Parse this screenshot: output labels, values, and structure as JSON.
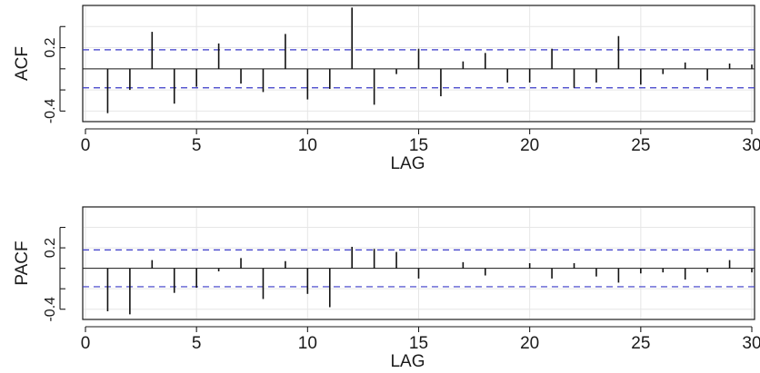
{
  "chart_data": [
    {
      "type": "bar",
      "ylabel": "ACF",
      "xlabel": "LAG",
      "xlim": [
        0,
        30
      ],
      "ylim": [
        -0.5,
        0.6
      ],
      "xticks": [
        0,
        5,
        10,
        15,
        20,
        25,
        30
      ],
      "yticks": [
        -0.4,
        -0.2,
        0,
        0.2,
        0.4
      ],
      "ytick_labels": [
        "-0.4",
        "",
        "",
        "0.2",
        ""
      ],
      "confidence_bound": 0.18,
      "grid": true,
      "x": [
        1,
        2,
        3,
        4,
        5,
        6,
        7,
        8,
        9,
        10,
        11,
        12,
        13,
        14,
        15,
        16,
        17,
        18,
        19,
        20,
        21,
        22,
        23,
        24,
        25,
        26,
        27,
        28,
        29,
        30
      ],
      "values": [
        -0.42,
        -0.2,
        0.35,
        -0.33,
        -0.17,
        0.24,
        -0.14,
        -0.22,
        0.33,
        -0.29,
        -0.19,
        0.58,
        -0.34,
        -0.05,
        0.19,
        -0.26,
        0.07,
        0.15,
        -0.13,
        -0.13,
        0.19,
        -0.18,
        -0.13,
        0.31,
        -0.15,
        -0.05,
        0.06,
        -0.11,
        0.05,
        0.04
      ]
    },
    {
      "type": "bar",
      "ylabel": "PACF",
      "xlabel": "LAG",
      "xlim": [
        0,
        30
      ],
      "ylim": [
        -0.5,
        0.6
      ],
      "xticks": [
        0,
        5,
        10,
        15,
        20,
        25,
        30
      ],
      "yticks": [
        -0.4,
        -0.2,
        0,
        0.2,
        0.4
      ],
      "ytick_labels": [
        "-0.4",
        "",
        "",
        "0.2",
        ""
      ],
      "confidence_bound": 0.18,
      "grid": true,
      "x": [
        1,
        2,
        3,
        4,
        5,
        6,
        7,
        8,
        9,
        10,
        11,
        12,
        13,
        14,
        15,
        16,
        17,
        18,
        19,
        20,
        21,
        22,
        23,
        24,
        25,
        26,
        27,
        28,
        29,
        30
      ],
      "values": [
        -0.42,
        -0.45,
        0.08,
        -0.24,
        -0.19,
        -0.03,
        0.1,
        -0.3,
        0.07,
        -0.25,
        -0.38,
        0.21,
        0.19,
        0.16,
        -0.1,
        0.0,
        0.06,
        -0.07,
        0.0,
        0.05,
        -0.1,
        0.05,
        -0.08,
        -0.14,
        -0.05,
        -0.04,
        -0.11,
        -0.04,
        0.08,
        -0.04
      ]
    }
  ]
}
